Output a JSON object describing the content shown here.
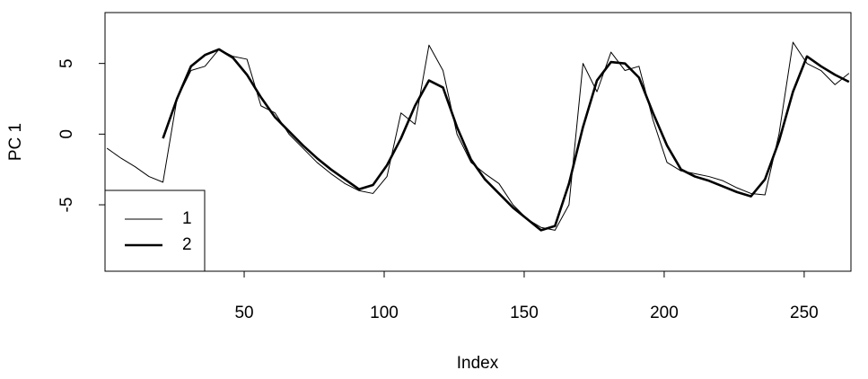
{
  "chart_data": {
    "type": "line",
    "x_label": "Index",
    "y_label": "PC 1",
    "x": [
      1,
      6,
      11,
      16,
      21,
      26,
      31,
      36,
      41,
      46,
      51,
      56,
      61,
      66,
      71,
      76,
      81,
      86,
      91,
      96,
      101,
      106,
      111,
      116,
      121,
      126,
      131,
      136,
      141,
      146,
      151,
      156,
      161,
      166,
      171,
      176,
      181,
      186,
      191,
      196,
      201,
      206,
      211,
      216,
      221,
      226,
      231,
      236,
      241,
      246,
      251,
      256,
      261,
      266
    ],
    "series": [
      {
        "name": "1",
        "color": "#000000",
        "values": [
          -1,
          -1.7,
          -2.3,
          -3,
          -3.4,
          2.5,
          4.5,
          4.8,
          6,
          5.5,
          5.3,
          2,
          1.5,
          0,
          -1,
          -2,
          -2.8,
          -3.5,
          -4,
          -4.2,
          -3,
          1.5,
          0.7,
          6.3,
          4.5,
          0,
          -2,
          -2.8,
          -3.5,
          -5,
          -6,
          -6.6,
          -6.8,
          -5,
          5,
          3,
          5.8,
          4.5,
          4.8,
          1,
          -2,
          -2.6,
          -2.8,
          -3,
          -3.3,
          -3.8,
          -4.2,
          -4.3,
          0,
          6.5,
          5,
          4.5,
          3.5,
          4.3
        ]
      },
      {
        "name": "2",
        "color": "#000000",
        "values": [
          null,
          null,
          null,
          null,
          -0.3,
          2.5,
          4.8,
          5.6,
          6,
          5.4,
          4.2,
          2.6,
          1.2,
          0.2,
          -0.8,
          -1.7,
          -2.5,
          -3.2,
          -3.9,
          -3.6,
          -2.2,
          -0.3,
          2,
          3.8,
          3.3,
          0.5,
          -1.8,
          -3.2,
          -4.2,
          -5.2,
          -6,
          -6.8,
          -6.5,
          -3.5,
          0.5,
          3.8,
          5.1,
          5,
          4,
          1.5,
          -0.8,
          -2.5,
          -3,
          -3.3,
          -3.7,
          -4.1,
          -4.4,
          -3.2,
          -0.5,
          3,
          5.5,
          4.8,
          4.2,
          3.7
        ]
      }
    ],
    "xlim": [
      0.3,
      266.7
    ],
    "ylim": [
      -9.7,
      8.6
    ],
    "xticks": [
      50,
      100,
      150,
      200,
      250
    ],
    "yticks": [
      -5,
      0,
      5
    ],
    "legend": "bottom-left"
  }
}
